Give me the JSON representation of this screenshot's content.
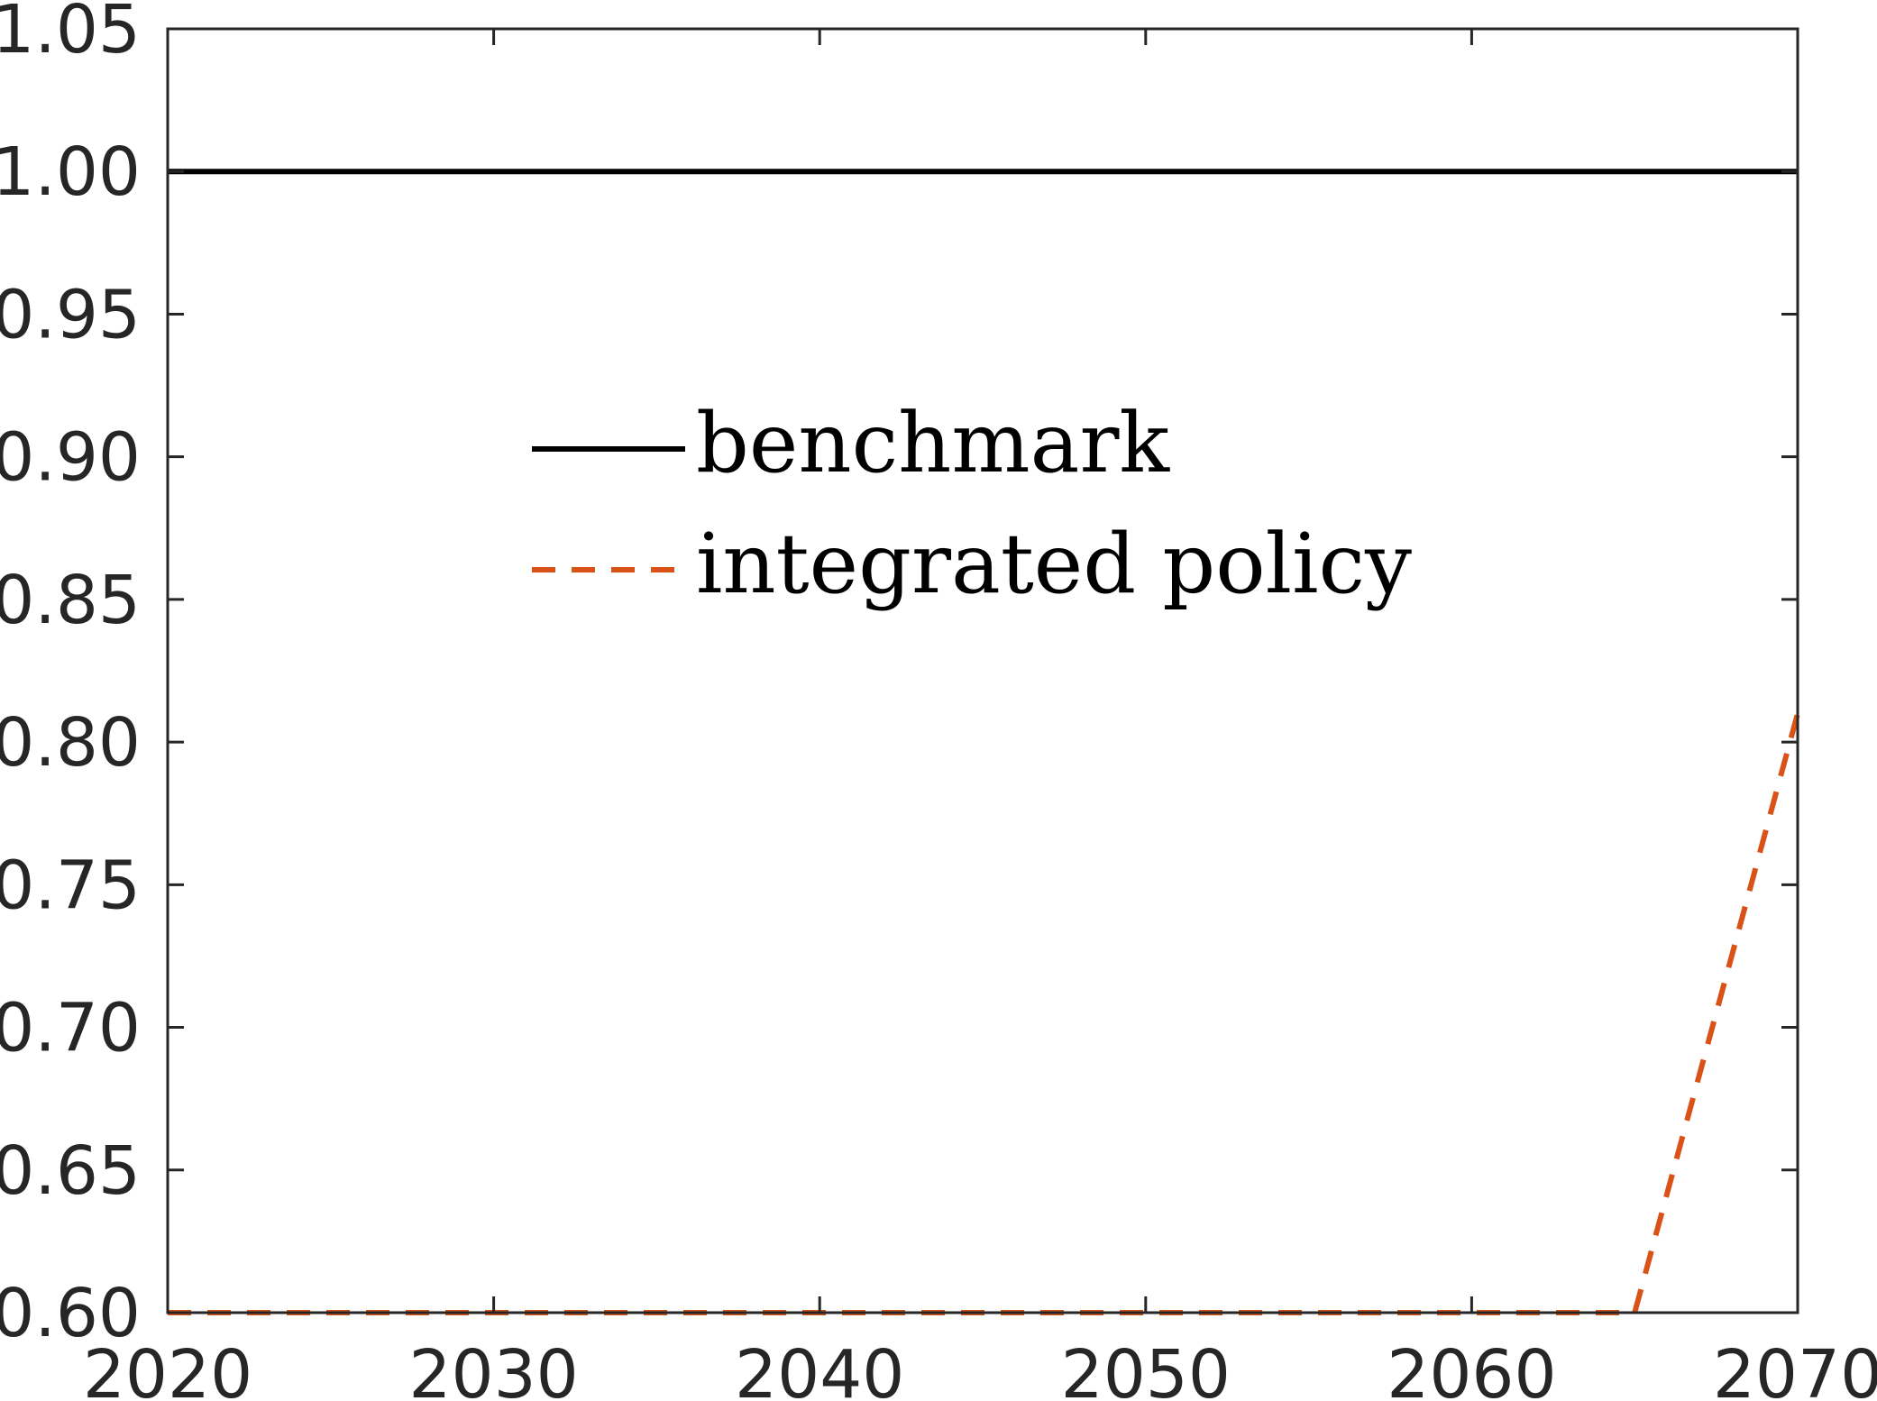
{
  "chart_data": {
    "type": "line",
    "xlim": [
      2020,
      2070
    ],
    "ylim": [
      0.6,
      1.05
    ],
    "x_ticks": [
      "2020",
      "2030",
      "2040",
      "2050",
      "2060",
      "2070"
    ],
    "y_ticks": [
      "0.60",
      "0.65",
      "0.70",
      "0.75",
      "0.80",
      "0.85",
      "0.90",
      "0.95",
      "1.00",
      "1.05"
    ],
    "grid": false,
    "legend_position": "center-left",
    "series": [
      {
        "name": "benchmark",
        "color": "#000000",
        "dash": "solid",
        "x": [
          2020,
          2030,
          2040,
          2050,
          2060,
          2070
        ],
        "values": [
          1.0,
          1.0,
          1.0,
          1.0,
          1.0,
          1.0
        ]
      },
      {
        "name": "integrated policy",
        "color": "#D95319",
        "dash": "dashed",
        "x": [
          2020,
          2030,
          2040,
          2050,
          2060,
          2065,
          2070
        ],
        "values": [
          0.6,
          0.6,
          0.6,
          0.6,
          0.6,
          0.6,
          0.81
        ]
      }
    ]
  }
}
